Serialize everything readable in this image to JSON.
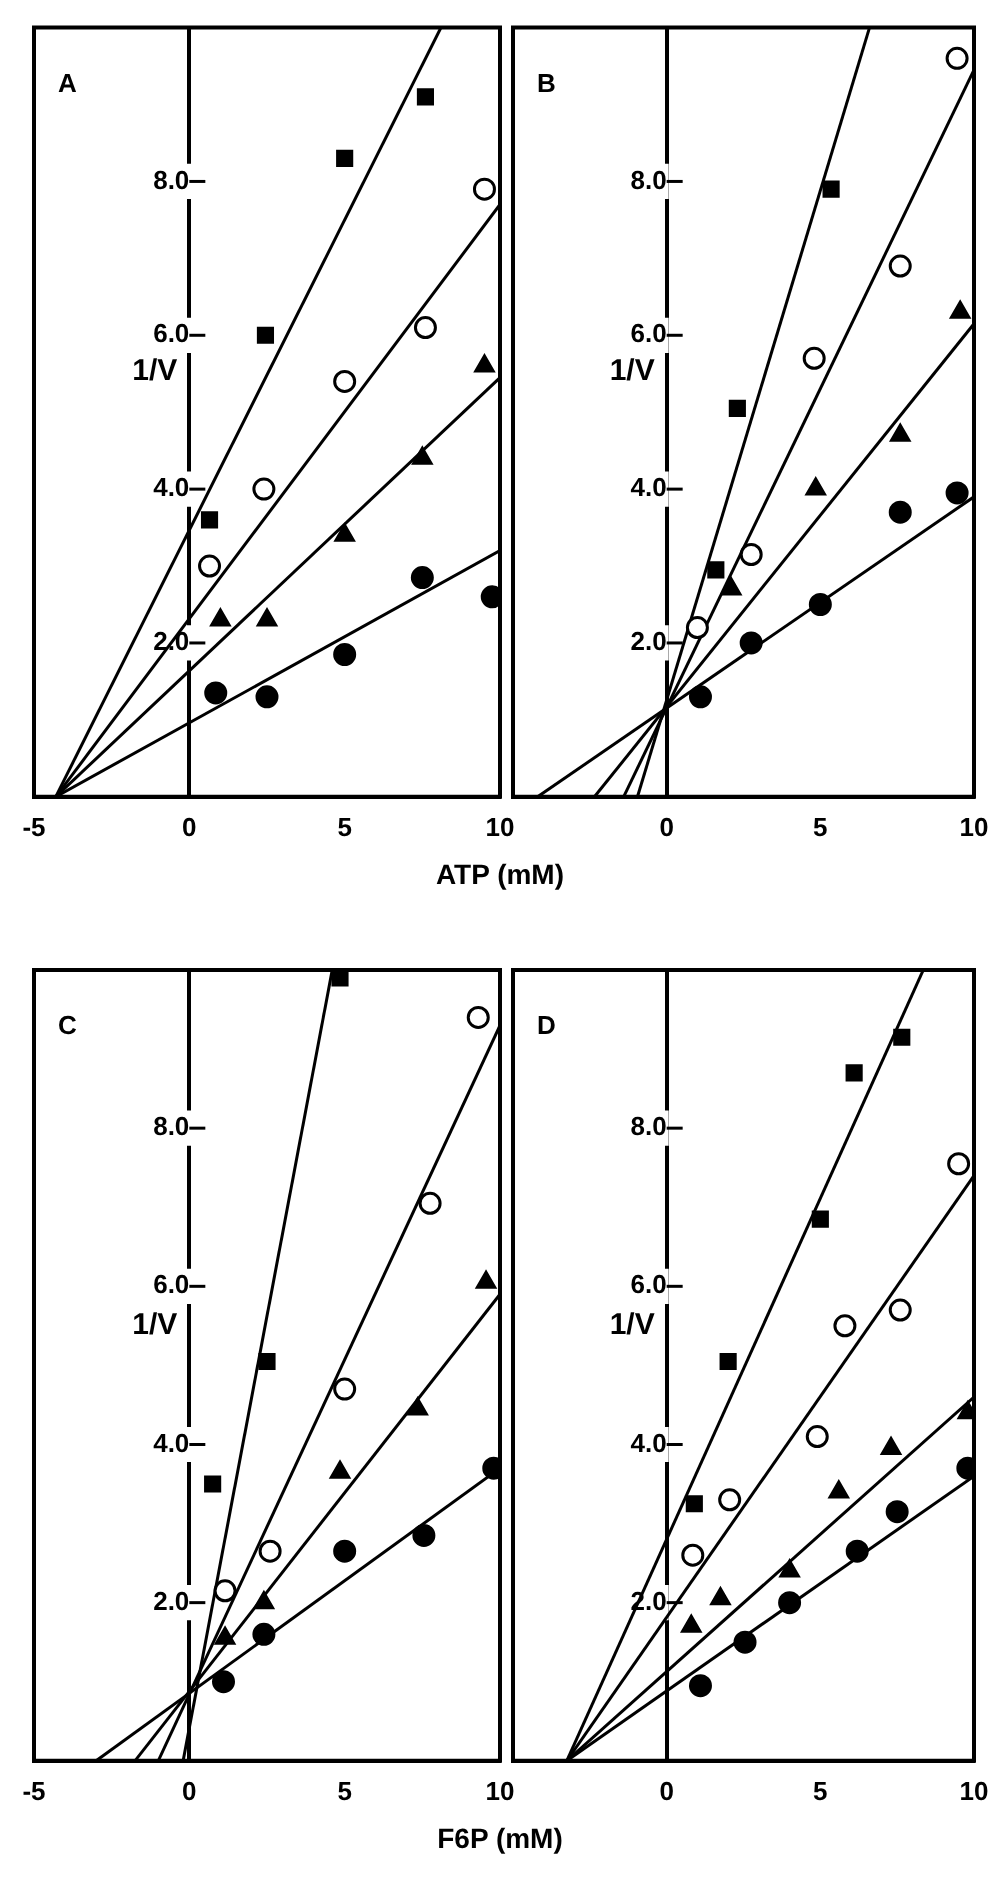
{
  "chart_data": [
    {
      "type": "scatter",
      "annotations": [
        "A"
      ],
      "ylabel": "1/V",
      "xlabel": "ATP (mM)",
      "xlim": [
        -5,
        10
      ],
      "xticks": [
        -5,
        0,
        5,
        10
      ],
      "ylim": [
        0,
        10
      ],
      "yticks": [
        {
          "value": 2,
          "label": "2.0"
        },
        {
          "value": 4,
          "label": "4.0"
        },
        {
          "value": 6,
          "label": "6.0"
        },
        {
          "value": 8,
          "label": "8.0"
        }
      ],
      "grid": false,
      "legend": false,
      "series": [
        {
          "type": "scatter",
          "marker": "square",
          "color": "#000000",
          "x": [
            0.65,
            2.45,
            5.0,
            7.6
          ],
          "values": [
            3.6,
            6.0,
            8.3,
            9.1
          ]
        },
        {
          "type": "scatter",
          "marker": "circle",
          "color": "#ffffff",
          "x": [
            0.65,
            2.4,
            5.0,
            7.6,
            9.5
          ],
          "values": [
            3.0,
            4.0,
            5.4,
            6.1,
            7.9
          ]
        },
        {
          "type": "scatter",
          "marker": "triangle",
          "color": "#000000",
          "x": [
            1.0,
            2.5,
            5.0,
            7.5,
            9.5
          ],
          "values": [
            2.3,
            2.3,
            3.4,
            4.4,
            5.6
          ]
        },
        {
          "type": "scatter",
          "marker": "circle",
          "color": "#000000",
          "x": [
            0.85,
            2.5,
            5.0,
            7.5,
            9.75
          ],
          "values": [
            1.35,
            1.3,
            1.85,
            2.85,
            2.6
          ]
        },
        {
          "type": "line",
          "marker": "none",
          "color": "#000000",
          "x": [
            -4.3,
            8.1
          ],
          "values": [
            0,
            10
          ]
        },
        {
          "type": "line",
          "marker": "none",
          "color": "#000000",
          "x": [
            -4.3,
            10
          ],
          "values": [
            0,
            7.7
          ]
        },
        {
          "type": "line",
          "marker": "none",
          "color": "#000000",
          "x": [
            -4.3,
            10
          ],
          "values": [
            0,
            5.45
          ]
        },
        {
          "type": "line",
          "marker": "none",
          "color": "#000000",
          "x": [
            -4.3,
            10
          ],
          "values": [
            0,
            3.2
          ]
        }
      ]
    },
    {
      "type": "scatter",
      "annotations": [
        "B"
      ],
      "ylabel": "1/V",
      "xlim": [
        -5,
        10
      ],
      "xticks": [
        0,
        5,
        10
      ],
      "ylim": [
        0,
        10
      ],
      "yticks": [
        {
          "value": 2,
          "label": "2.0"
        },
        {
          "value": 4,
          "label": "4.0"
        },
        {
          "value": 6,
          "label": "6.0"
        },
        {
          "value": 8,
          "label": "8.0"
        }
      ],
      "grid": false,
      "legend": false,
      "series": [
        {
          "type": "scatter",
          "marker": "square",
          "color": "#000000",
          "x": [
            1.6,
            2.3,
            5.35
          ],
          "values": [
            2.95,
            5.05,
            7.9
          ]
        },
        {
          "type": "scatter",
          "marker": "circle",
          "color": "#ffffff",
          "x": [
            1.0,
            2.75,
            4.8,
            7.6,
            9.45
          ],
          "values": [
            2.2,
            3.15,
            5.7,
            6.9,
            9.6
          ]
        },
        {
          "type": "scatter",
          "marker": "triangle",
          "color": "#000000",
          "x": [
            2.1,
            4.85,
            7.6,
            9.55
          ],
          "values": [
            2.7,
            4.0,
            4.7,
            6.3
          ]
        },
        {
          "type": "scatter",
          "marker": "circle",
          "color": "#000000",
          "x": [
            1.1,
            2.75,
            5.0,
            7.6,
            9.45
          ],
          "values": [
            1.3,
            2.0,
            2.5,
            3.7,
            3.95
          ]
        },
        {
          "type": "line",
          "marker": "none",
          "color": "#000000",
          "x": [
            -0.95,
            6.6
          ],
          "values": [
            0,
            10
          ]
        },
        {
          "type": "line",
          "marker": "none",
          "color": "#000000",
          "x": [
            -1.4,
            10
          ],
          "values": [
            0,
            9.45
          ]
        },
        {
          "type": "line",
          "marker": "none",
          "color": "#000000",
          "x": [
            -2.35,
            10
          ],
          "values": [
            0,
            6.15
          ]
        },
        {
          "type": "line",
          "marker": "none",
          "color": "#000000",
          "x": [
            -4.2,
            10
          ],
          "values": [
            0,
            3.9
          ]
        }
      ]
    },
    {
      "type": "scatter",
      "annotations": [
        "C"
      ],
      "ylabel": "1/V",
      "xlabel": "F6P (mM)",
      "xlim": [
        -5,
        10
      ],
      "xticks": [
        -5,
        0,
        5,
        10
      ],
      "ylim": [
        0,
        10
      ],
      "yticks": [
        {
          "value": 2,
          "label": "2.0"
        },
        {
          "value": 4,
          "label": "4.0"
        },
        {
          "value": 6,
          "label": "6.0"
        },
        {
          "value": 8,
          "label": "8.0"
        }
      ],
      "grid": false,
      "legend": false,
      "series": [
        {
          "type": "scatter",
          "marker": "square",
          "color": "#000000",
          "x": [
            0.75,
            2.5,
            4.85
          ],
          "values": [
            3.5,
            5.05,
            9.9
          ]
        },
        {
          "type": "scatter",
          "marker": "circle",
          "color": "#ffffff",
          "x": [
            1.15,
            2.6,
            5.0,
            7.75,
            9.3
          ],
          "values": [
            2.15,
            2.65,
            4.7,
            7.05,
            9.4
          ]
        },
        {
          "type": "scatter",
          "marker": "triangle",
          "color": "#000000",
          "x": [
            1.15,
            2.4,
            4.85,
            7.35,
            9.55
          ],
          "values": [
            1.55,
            2.0,
            3.65,
            4.45,
            6.05
          ]
        },
        {
          "type": "scatter",
          "marker": "circle",
          "color": "#000000",
          "x": [
            1.1,
            2.4,
            5.0,
            7.55,
            9.8
          ],
          "values": [
            1.0,
            1.6,
            2.65,
            2.85,
            3.7
          ]
        },
        {
          "type": "line",
          "marker": "none",
          "color": "#000000",
          "x": [
            -0.2,
            4.6
          ],
          "values": [
            0,
            10
          ]
        },
        {
          "type": "line",
          "marker": "none",
          "color": "#000000",
          "x": [
            -1.0,
            10
          ],
          "values": [
            0,
            9.3
          ]
        },
        {
          "type": "line",
          "marker": "none",
          "color": "#000000",
          "x": [
            -1.75,
            10
          ],
          "values": [
            0,
            5.9
          ]
        },
        {
          "type": "line",
          "marker": "none",
          "color": "#000000",
          "x": [
            -3.0,
            10
          ],
          "values": [
            0,
            3.7
          ]
        }
      ]
    },
    {
      "type": "scatter",
      "annotations": [
        "D"
      ],
      "ylabel": "1/V",
      "xlim": [
        -5,
        10
      ],
      "xticks": [
        0,
        5,
        10
      ],
      "ylim": [
        0,
        10
      ],
      "yticks": [
        {
          "value": 2,
          "label": "2.0"
        },
        {
          "value": 4,
          "label": "4.0"
        },
        {
          "value": 6,
          "label": "6.0"
        },
        {
          "value": 8,
          "label": "8.0"
        }
      ],
      "grid": false,
      "legend": false,
      "series": [
        {
          "type": "scatter",
          "marker": "square",
          "color": "#000000",
          "x": [
            0.9,
            2.0,
            5.0,
            6.1,
            7.65
          ],
          "values": [
            3.25,
            5.05,
            6.85,
            8.7,
            9.15
          ]
        },
        {
          "type": "scatter",
          "marker": "circle",
          "color": "#ffffff",
          "x": [
            0.85,
            2.05,
            4.9,
            5.8,
            7.6,
            9.5
          ],
          "values": [
            2.6,
            3.3,
            4.1,
            5.5,
            5.7,
            7.55
          ]
        },
        {
          "type": "scatter",
          "marker": "triangle",
          "color": "#000000",
          "x": [
            0.8,
            1.75,
            4.0,
            5.6,
            7.3,
            9.8
          ],
          "values": [
            1.7,
            2.05,
            2.4,
            3.4,
            3.95,
            4.4
          ]
        },
        {
          "type": "scatter",
          "marker": "circle",
          "color": "#000000",
          "x": [
            1.1,
            2.55,
            4.0,
            6.2,
            7.5,
            9.8
          ],
          "values": [
            0.95,
            1.5,
            2.0,
            2.65,
            3.15,
            3.7
          ]
        },
        {
          "type": "line",
          "marker": "none",
          "color": "#000000",
          "x": [
            -3.25,
            8.35
          ],
          "values": [
            0,
            10
          ]
        },
        {
          "type": "line",
          "marker": "none",
          "color": "#000000",
          "x": [
            -3.25,
            10
          ],
          "values": [
            0,
            7.4
          ]
        },
        {
          "type": "line",
          "marker": "none",
          "color": "#000000",
          "x": [
            -3.25,
            10
          ],
          "values": [
            0,
            4.6
          ]
        },
        {
          "type": "line",
          "marker": "none",
          "color": "#000000",
          "x": [
            -3.25,
            10
          ],
          "values": [
            0,
            3.6
          ]
        }
      ]
    }
  ]
}
